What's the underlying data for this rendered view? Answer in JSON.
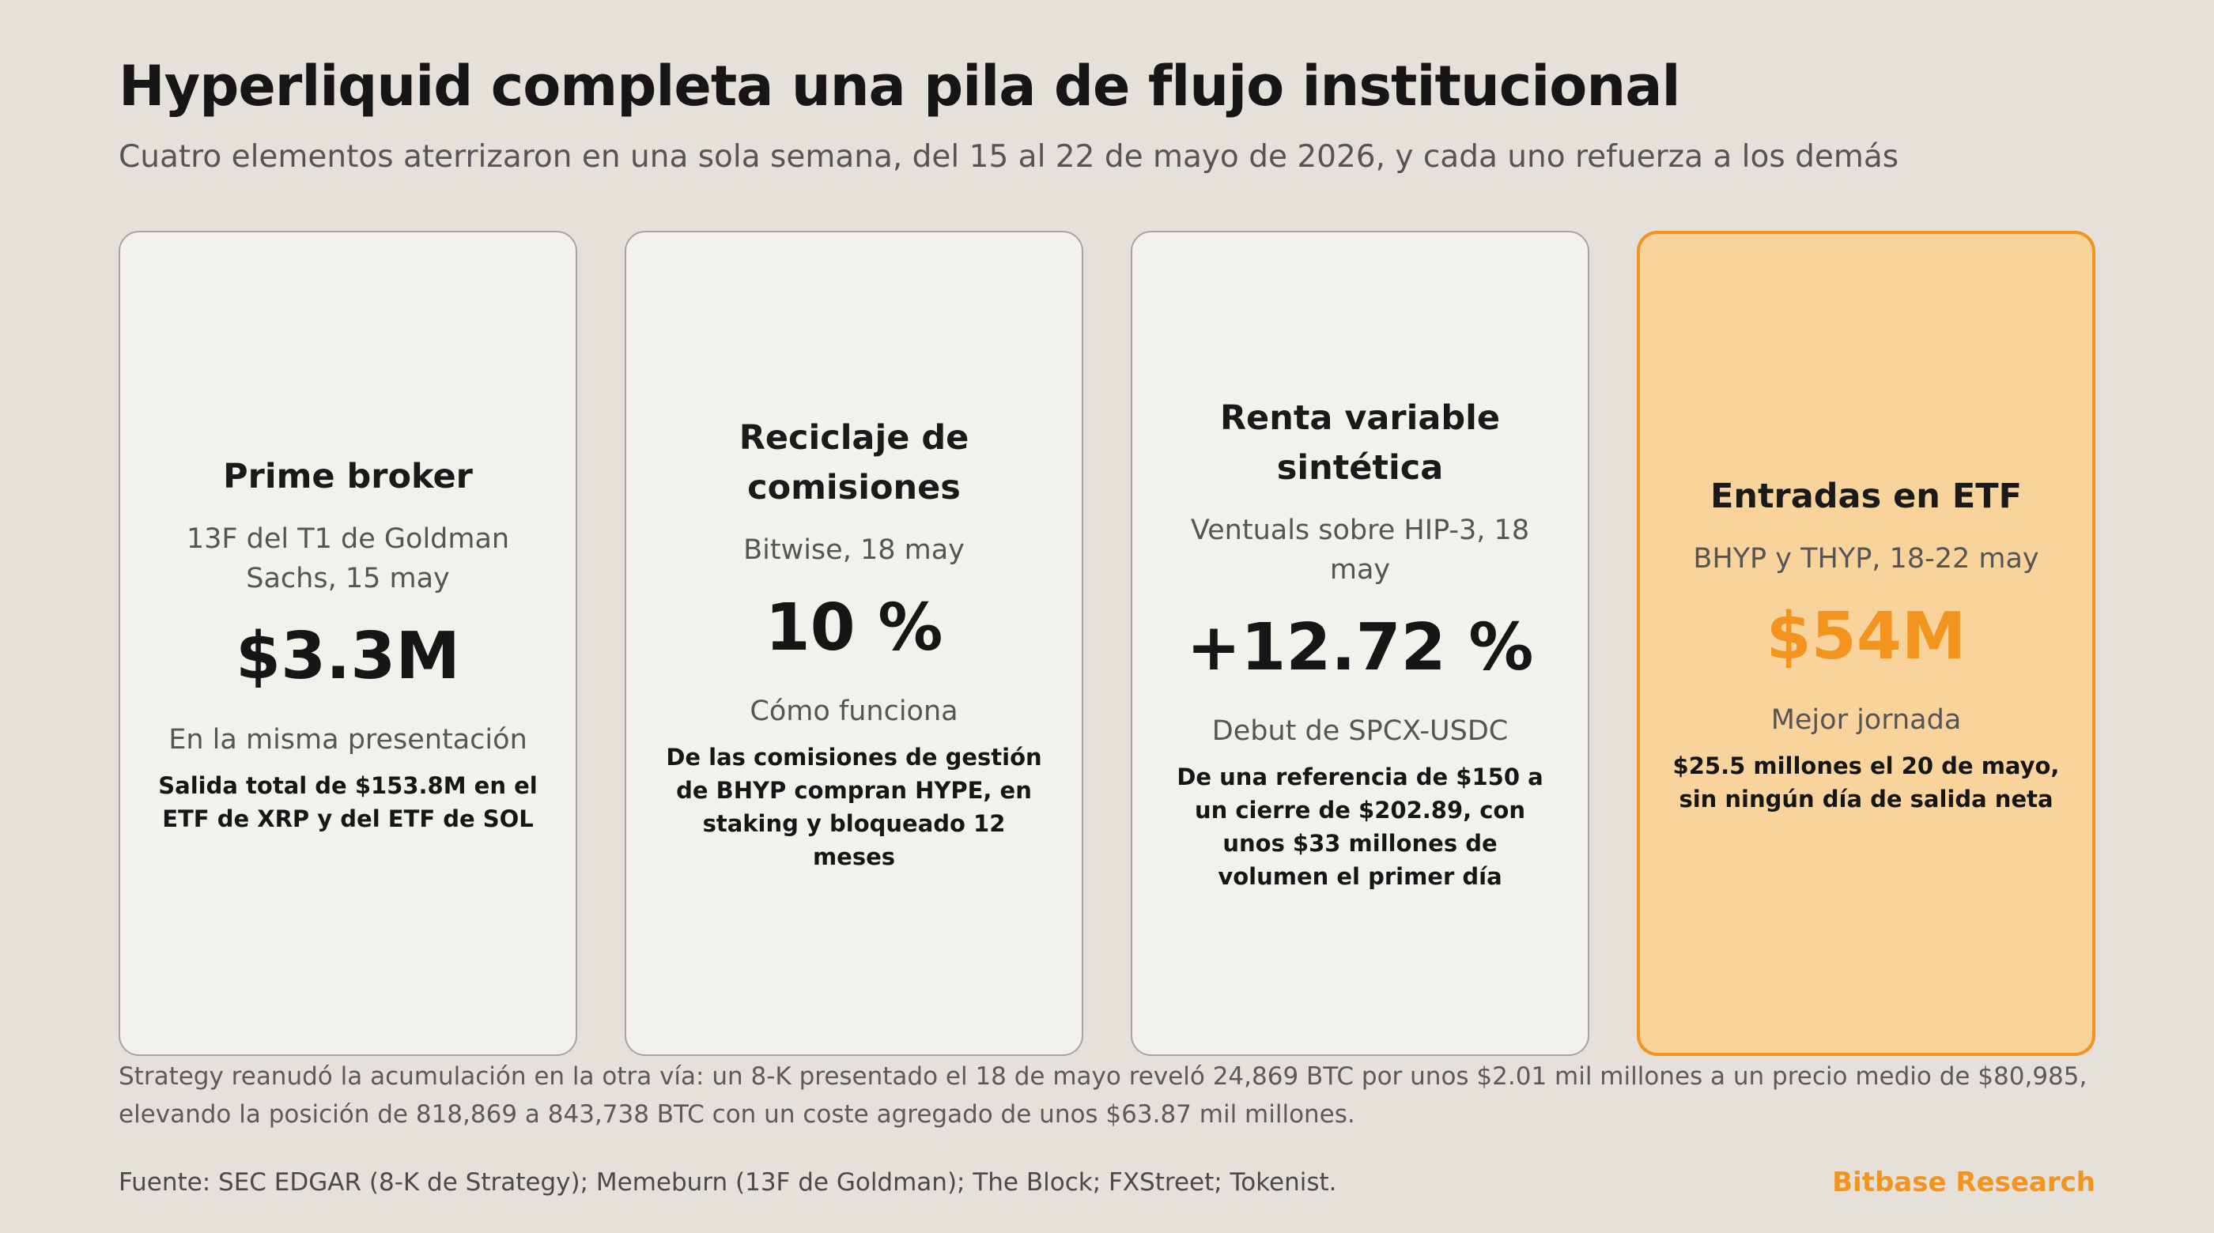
{
  "header": {
    "title": "Hyperliquid completa una pila de flujo institucional",
    "subtitle": "Cuatro elementos aterrizaron en una sola semana, del 15 al 22 de mayo de 2026, y cada uno refuerza a los demás"
  },
  "cards": [
    {
      "title": "Prime broker",
      "source": "13F del T1 de Goldman Sachs, 15 may",
      "value": "$3.3M",
      "detail_label": "En la misma presentación",
      "detail": "Salida total de $153.8M en el ETF de XRP y del ETF de SOL"
    },
    {
      "title": "Reciclaje de comisiones",
      "source": "Bitwise, 18 may",
      "value": "10 %",
      "detail_label": "Cómo funciona",
      "detail": "De las comisiones de gestión de BHYP compran HYPE, en staking y bloqueado 12 meses"
    },
    {
      "title": "Renta variable sintética",
      "source": "Ventuals sobre HIP-3, 18 may",
      "value": "+12.72 %",
      "detail_label": "Debut de SPCX-USDC",
      "detail": "De una referencia de $150 a un cierre de $202.89, con unos $33 millones de volumen el primer día"
    },
    {
      "title": "Entradas en ETF",
      "source": "BHYP y THYP, 18-22 may",
      "value": "$54M",
      "detail_label": "Mejor jornada",
      "detail": "$25.5 millones el 20 de mayo, sin ningún día de salida neta"
    }
  ],
  "footer": {
    "note": "Strategy reanudó la acumulación en la otra vía: un 8-K presentado el 18 de mayo reveló 24,869 BTC por unos $2.01 mil millones a un precio medio de $80,985, elevando la posición de 818,869 a 843,738 BTC con un coste agregado de unos $63.87 mil millones.",
    "source": "Fuente: SEC EDGAR (8-K de Strategy); Memeburn (13F de Goldman); The Block; FXStreet; Tokenist.",
    "brand": "Bitbase Research"
  },
  "colors": {
    "background": "#e5e0da",
    "card": "#f3f1ec",
    "highlight_card": "#f8d49c",
    "accent": "#f3941f"
  }
}
